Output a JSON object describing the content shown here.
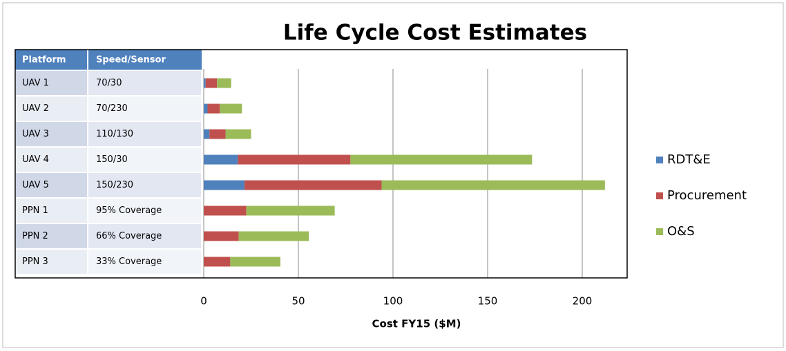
{
  "chart_data": {
    "type": "bar",
    "orientation": "horizontal",
    "stacked": true,
    "title": "Life Cycle Cost Estimates",
    "x_label": "Cost FY15 ($M)",
    "table_header": [
      "Platform",
      "Speed/Sensor"
    ],
    "categories": [
      "UAV 1",
      "UAV 2",
      "UAV 3",
      "UAV 4",
      "UAV 5",
      "PPN 1",
      "PPN 2",
      "PPN 3"
    ],
    "speed_sensor": [
      "70/30",
      "70/230",
      "110/130",
      "150/30",
      "150/230",
      "95% Coverage",
      "66% Coverage",
      "33% Coverage"
    ],
    "series": [
      {
        "name": "RDT&E",
        "color": "#4f81bd",
        "values": [
          1,
          2,
          3,
          18,
          21.5,
          0,
          0,
          0
        ]
      },
      {
        "name": "Procurement",
        "color": "#c0504d",
        "values": [
          6,
          6.5,
          8.5,
          59.5,
          72.5,
          22.5,
          18.5,
          14
        ]
      },
      {
        "name": "O&S",
        "color": "#9bbb59",
        "values": [
          7.5,
          11.7,
          13.5,
          96,
          118,
          46.7,
          37,
          26.5
        ]
      }
    ],
    "xlim": [
      0,
      225
    ],
    "xticks": [
      0,
      50,
      100,
      150,
      200
    ],
    "grid": true,
    "legend": "right"
  }
}
